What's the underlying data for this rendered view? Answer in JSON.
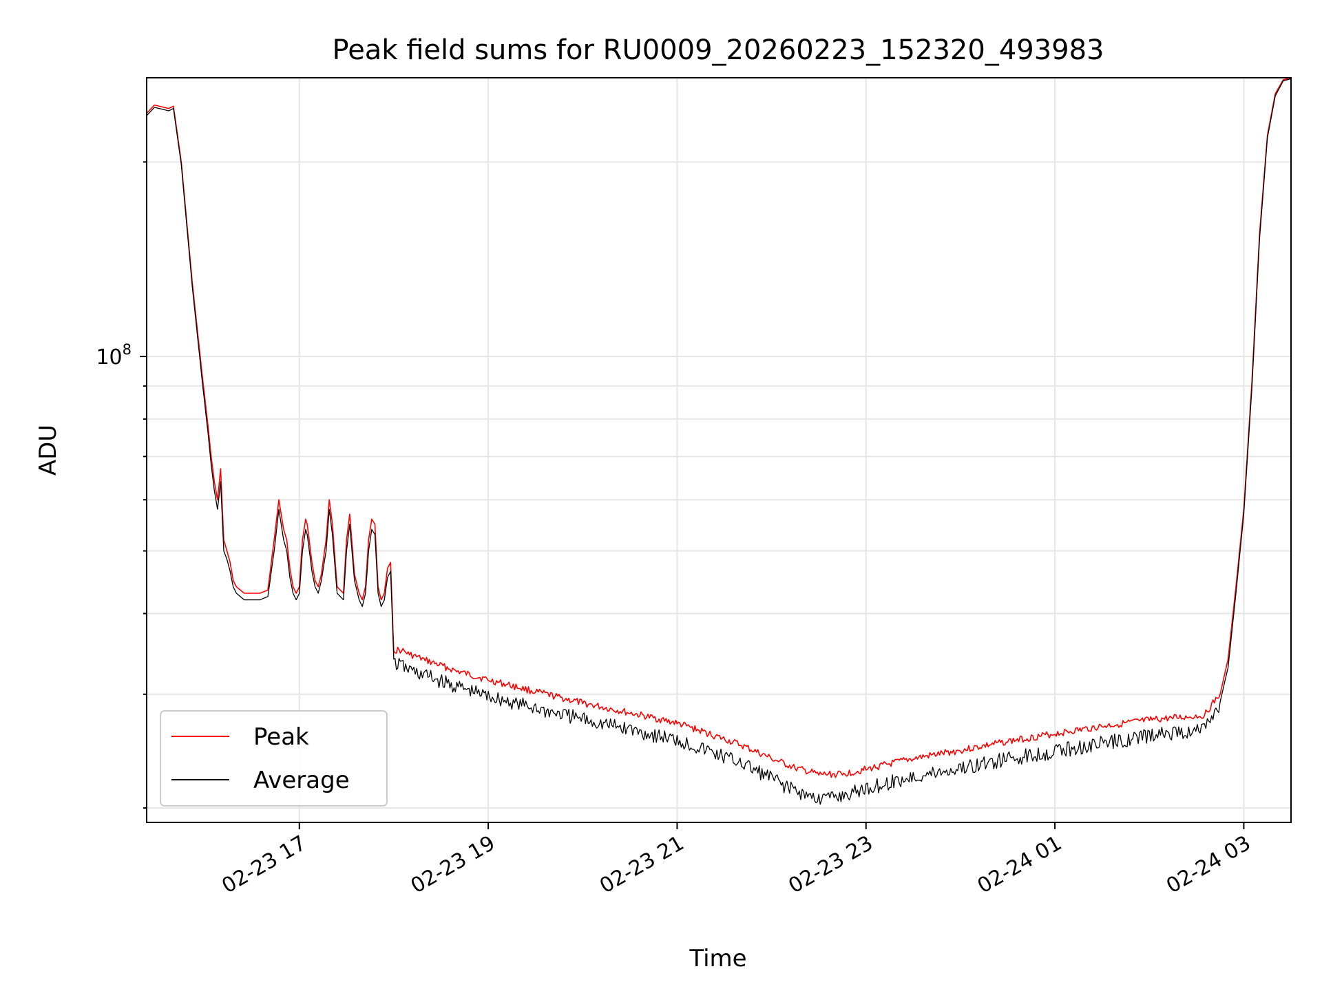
{
  "chart_data": {
    "type": "line",
    "title": "Peak field sums for RU0009_20260223_152320_493983",
    "xlabel": "Time",
    "ylabel": "ADU",
    "yscale": "log",
    "xlim": [
      "2026-02-23T15:23",
      "2026-02-24T03:30"
    ],
    "ylim": [
      19000000,
      270000000
    ],
    "grid": true,
    "legend_position": "lower-left",
    "x_tick_labels": [
      "02-23 17",
      "02-23 19",
      "02-23 21",
      "02-23 23",
      "02-24 01",
      "02-24 03"
    ],
    "x_tick_times": [
      "2026-02-23T17:00",
      "2026-02-23T19:00",
      "2026-02-23T21:00",
      "2026-02-23T23:00",
      "2026-02-24T01:00",
      "2026-02-24T03:00"
    ],
    "y_tick_label_major": "10^8",
    "y_tick_value_major": 100000000,
    "series": [
      {
        "name": "Peak",
        "color": "#ff0000",
        "x": [
          "2026-02-23T15:23",
          "2026-02-23T15:28",
          "2026-02-23T15:37",
          "2026-02-23T15:40",
          "2026-02-23T15:45",
          "2026-02-23T15:52",
          "2026-02-23T15:58",
          "2026-02-23T16:02",
          "2026-02-23T16:04",
          "2026-02-23T16:06",
          "2026-02-23T16:08",
          "2026-02-23T16:10",
          "2026-02-23T16:12",
          "2026-02-23T16:14",
          "2026-02-23T16:16",
          "2026-02-23T16:18",
          "2026-02-23T16:20",
          "2026-02-23T16:25",
          "2026-02-23T16:30",
          "2026-02-23T16:35",
          "2026-02-23T16:40",
          "2026-02-23T16:44",
          "2026-02-23T16:47",
          "2026-02-23T16:50",
          "2026-02-23T16:52",
          "2026-02-23T16:54",
          "2026-02-23T16:56",
          "2026-02-23T16:58",
          "2026-02-23T17:00",
          "2026-02-23T17:02",
          "2026-02-23T17:04",
          "2026-02-23T17:05",
          "2026-02-23T17:08",
          "2026-02-23T17:10",
          "2026-02-23T17:12",
          "2026-02-23T17:14",
          "2026-02-23T17:17",
          "2026-02-23T17:19",
          "2026-02-23T17:21",
          "2026-02-23T17:24",
          "2026-02-23T17:28",
          "2026-02-23T17:30",
          "2026-02-23T17:32",
          "2026-02-23T17:35",
          "2026-02-23T17:38",
          "2026-02-23T17:40",
          "2026-02-23T17:42",
          "2026-02-23T17:44",
          "2026-02-23T17:46",
          "2026-02-23T17:48",
          "2026-02-23T17:50",
          "2026-02-23T17:52",
          "2026-02-23T17:54",
          "2026-02-23T17:56",
          "2026-02-23T17:58",
          "2026-02-23T18:00",
          "2026-02-23T18:05",
          "2026-02-23T18:10",
          "2026-02-23T18:20",
          "2026-02-23T18:40",
          "2026-02-23T19:00",
          "2026-02-23T19:30",
          "2026-02-23T20:00",
          "2026-02-23T20:30",
          "2026-02-23T21:00",
          "2026-02-23T21:20",
          "2026-02-23T21:40",
          "2026-02-23T22:00",
          "2026-02-23T22:15",
          "2026-02-23T22:30",
          "2026-02-23T22:45",
          "2026-02-23T23:00",
          "2026-02-23T23:30",
          "2026-02-24T00:00",
          "2026-02-24T00:30",
          "2026-02-24T01:00",
          "2026-02-24T01:30",
          "2026-02-24T02:00",
          "2026-02-24T02:15",
          "2026-02-24T02:25",
          "2026-02-24T02:35",
          "2026-02-24T02:45",
          "2026-02-24T02:50",
          "2026-02-24T02:55",
          "2026-02-24T03:00",
          "2026-02-24T03:05",
          "2026-02-24T03:10",
          "2026-02-24T03:15",
          "2026-02-24T03:20",
          "2026-02-24T03:25",
          "2026-02-24T03:30"
        ],
        "y": [
          238000000,
          245000000,
          242000000,
          244000000,
          200000000,
          130000000,
          95000000,
          78000000,
          70000000,
          64000000,
          60000000,
          67000000,
          52000000,
          50000000,
          48000000,
          45000000,
          44000000,
          43000000,
          43000000,
          43000000,
          43500000,
          52000000,
          60000000,
          54000000,
          52000000,
          47000000,
          44000000,
          43000000,
          44000000,
          52000000,
          56000000,
          55000000,
          48000000,
          45000000,
          44000000,
          46000000,
          52000000,
          60000000,
          55000000,
          44000000,
          43000000,
          52000000,
          57000000,
          46000000,
          43000000,
          42000000,
          44000000,
          52000000,
          56000000,
          55000000,
          44000000,
          42000000,
          43000000,
          47000000,
          48000000,
          35000000,
          35000000,
          34500000,
          33800000,
          32500000,
          31500000,
          30200000,
          29000000,
          28000000,
          27000000,
          26000000,
          25000000,
          23800000,
          23000000,
          22500000,
          22500000,
          22900000,
          23800000,
          24500000,
          25300000,
          26000000,
          26700000,
          27300000,
          27500000,
          27600000,
          27800000,
          30000000,
          34000000,
          44000000,
          58000000,
          90000000,
          155000000,
          220000000,
          255000000,
          268000000,
          270000000
        ]
      },
      {
        "name": "Average",
        "color": "#000000",
        "x": [
          "2026-02-23T15:23",
          "2026-02-23T15:28",
          "2026-02-23T15:37",
          "2026-02-23T15:40",
          "2026-02-23T15:45",
          "2026-02-23T15:52",
          "2026-02-23T15:58",
          "2026-02-23T16:02",
          "2026-02-23T16:04",
          "2026-02-23T16:06",
          "2026-02-23T16:08",
          "2026-02-23T16:10",
          "2026-02-23T16:12",
          "2026-02-23T16:14",
          "2026-02-23T16:16",
          "2026-02-23T16:18",
          "2026-02-23T16:20",
          "2026-02-23T16:25",
          "2026-02-23T16:30",
          "2026-02-23T16:35",
          "2026-02-23T16:40",
          "2026-02-23T16:44",
          "2026-02-23T16:47",
          "2026-02-23T16:50",
          "2026-02-23T16:52",
          "2026-02-23T16:54",
          "2026-02-23T16:56",
          "2026-02-23T16:58",
          "2026-02-23T17:00",
          "2026-02-23T17:02",
          "2026-02-23T17:04",
          "2026-02-23T17:05",
          "2026-02-23T17:08",
          "2026-02-23T17:10",
          "2026-02-23T17:12",
          "2026-02-23T17:14",
          "2026-02-23T17:17",
          "2026-02-23T17:19",
          "2026-02-23T17:21",
          "2026-02-23T17:24",
          "2026-02-23T17:28",
          "2026-02-23T17:30",
          "2026-02-23T17:32",
          "2026-02-23T17:35",
          "2026-02-23T17:38",
          "2026-02-23T17:40",
          "2026-02-23T17:42",
          "2026-02-23T17:44",
          "2026-02-23T17:46",
          "2026-02-23T17:48",
          "2026-02-23T17:50",
          "2026-02-23T17:52",
          "2026-02-23T17:54",
          "2026-02-23T17:56",
          "2026-02-23T17:58",
          "2026-02-23T18:00",
          "2026-02-23T18:05",
          "2026-02-23T18:10",
          "2026-02-23T18:20",
          "2026-02-23T18:40",
          "2026-02-23T19:00",
          "2026-02-23T19:30",
          "2026-02-23T20:00",
          "2026-02-23T20:30",
          "2026-02-23T21:00",
          "2026-02-23T21:20",
          "2026-02-23T21:40",
          "2026-02-23T22:00",
          "2026-02-23T22:15",
          "2026-02-23T22:30",
          "2026-02-23T22:45",
          "2026-02-23T23:00",
          "2026-02-23T23:30",
          "2026-02-24T00:00",
          "2026-02-24T00:30",
          "2026-02-24T01:00",
          "2026-02-24T01:30",
          "2026-02-24T02:00",
          "2026-02-24T02:15",
          "2026-02-24T02:25",
          "2026-02-24T02:35",
          "2026-02-24T02:45",
          "2026-02-24T02:50",
          "2026-02-24T02:55",
          "2026-02-24T03:00",
          "2026-02-24T03:05",
          "2026-02-24T03:10",
          "2026-02-24T03:15",
          "2026-02-24T03:20",
          "2026-02-24T03:25",
          "2026-02-24T03:30"
        ],
        "y": [
          236000000,
          243000000,
          240000000,
          242000000,
          198000000,
          128000000,
          93000000,
          76000000,
          68000000,
          62000000,
          58000000,
          64000000,
          50000000,
          48500000,
          46500000,
          44000000,
          43000000,
          42000000,
          42000000,
          42000000,
          42500000,
          50000000,
          58000000,
          52000000,
          50000000,
          45500000,
          43000000,
          42000000,
          43000000,
          50000000,
          54000000,
          53000000,
          46500000,
          44000000,
          43000000,
          45000000,
          50000000,
          58000000,
          53000000,
          43000000,
          42000000,
          50000000,
          55000000,
          45000000,
          42000000,
          41000000,
          43000000,
          50000000,
          54000000,
          53000000,
          43000000,
          41000000,
          42000000,
          45500000,
          46500000,
          34000000,
          33800000,
          33200000,
          32600000,
          31300000,
          30300000,
          29000000,
          27900000,
          26900000,
          25900000,
          24900000,
          23900000,
          22600000,
          21600000,
          21000000,
          21200000,
          21800000,
          22700000,
          23400000,
          24200000,
          24900000,
          25600000,
          26300000,
          26600000,
          26700000,
          27000000,
          29200000,
          33000000,
          43000000,
          57000000,
          88000000,
          152000000,
          218000000,
          253000000,
          267000000,
          269000000
        ]
      }
    ]
  }
}
